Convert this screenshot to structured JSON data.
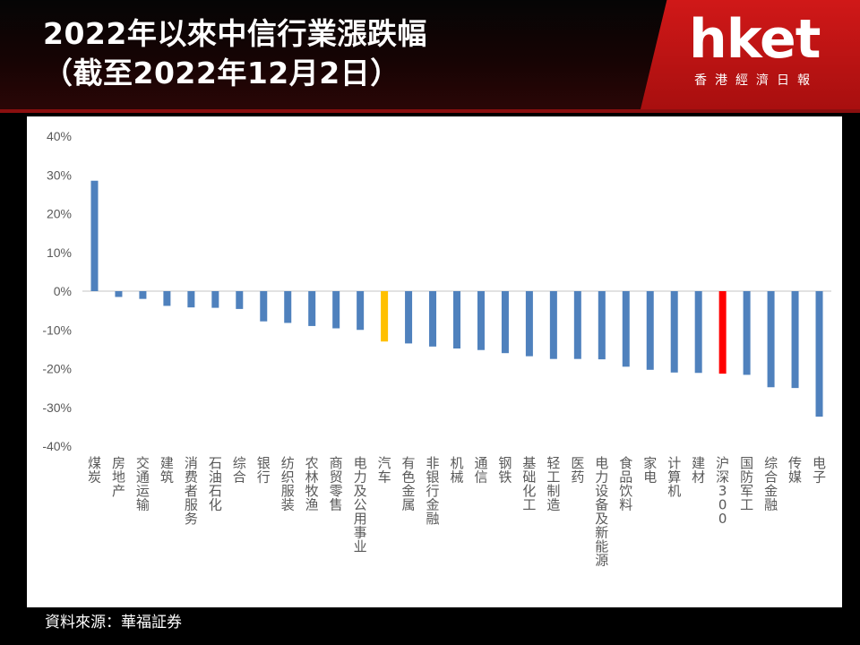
{
  "header": {
    "title_line1": "2022年以來中信行業漲跌幅",
    "title_line2": "（截至2022年12月2日）"
  },
  "logo": {
    "wordmark": "hket",
    "subtitle": "香港經濟日報"
  },
  "source": "資料來源：華福証券",
  "colors": {
    "bar_default": "#4f81bd",
    "bar_auto": "#ffc000",
    "bar_csi300": "#ff0000",
    "header_red": "#c01414",
    "axis_text": "#595959",
    "zero_line": "#d9d9d9"
  },
  "chart_data": {
    "type": "bar",
    "title": "",
    "xlabel": "",
    "ylabel": "",
    "ylim": [
      -40,
      40
    ],
    "yticks": [
      40,
      30,
      20,
      10,
      0,
      -10,
      -20,
      -30,
      -40
    ],
    "ytick_labels": [
      "40%",
      "30%",
      "20%",
      "10%",
      "0%",
      "-10%",
      "-20%",
      "-30%",
      "-40%"
    ],
    "grid": false,
    "legend": "none",
    "categories": [
      "煤炭",
      "房地产",
      "交通运输",
      "建筑",
      "消费者服务",
      "石油石化",
      "综合",
      "银行",
      "纺织服装",
      "农林牧渔",
      "商贸零售",
      "电力及公用事业",
      "汽车",
      "有色金属",
      "非银行金融",
      "机械",
      "通信",
      "钢铁",
      "基础化工",
      "轻工制造",
      "医药",
      "电力设备及新能源",
      "食品饮料",
      "家电",
      "计算机",
      "建材",
      "沪深300",
      "国防军工",
      "综合金融",
      "传媒",
      "电子"
    ],
    "values": [
      28.5,
      -1.5,
      -2.0,
      -3.8,
      -4.2,
      -4.3,
      -4.6,
      -7.8,
      -8.2,
      -9.0,
      -9.6,
      -10.0,
      -13.0,
      -13.5,
      -14.3,
      -14.8,
      -15.2,
      -16.0,
      -16.8,
      -17.5,
      -17.5,
      -17.6,
      -19.5,
      -20.3,
      -21.0,
      -21.1,
      -21.3,
      -21.6,
      -24.8,
      -25.0,
      -32.4
    ],
    "highlight": {
      "汽车": "#ffc000",
      "沪深300": "#ff0000"
    }
  }
}
